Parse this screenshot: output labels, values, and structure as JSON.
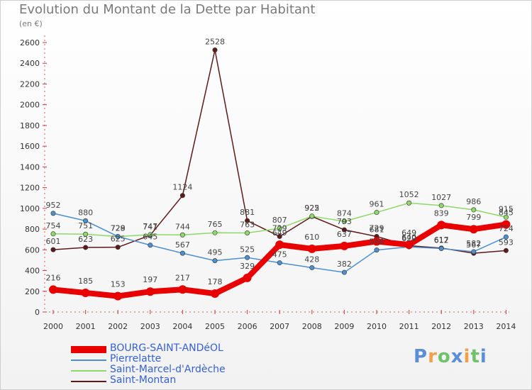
{
  "header": {
    "title": "Evolution du Montant de la Dette par Habitant",
    "subtitle": "(en €)"
  },
  "logo": {
    "text": "Proxiti",
    "colors": [
      "#5a8fd8",
      "#f2a14a",
      "#6fc26a"
    ]
  },
  "chart_data": {
    "type": "line",
    "title": "Evolution du Montant de la Dette par Habitant",
    "ylabel": "(en €)",
    "xlabel": "",
    "ylim": [
      0,
      2600
    ],
    "yticks": [
      0,
      200,
      400,
      600,
      800,
      1000,
      1200,
      1400,
      1600,
      1800,
      2000,
      2200,
      2400,
      2600
    ],
    "grid": false,
    "legend_position": "bottom-left",
    "x": [
      "2000",
      "2001",
      "2002",
      "2003",
      "2004",
      "2005",
      "2006",
      "2007",
      "2008",
      "2009",
      "2010",
      "2011",
      "2012",
      "2013",
      "2014"
    ],
    "series": [
      {
        "name": "Saint-Montan",
        "color": "#5e1a1a",
        "values": [
          601,
          623,
          625,
          741,
          1124,
          2528,
          881,
          729,
          922,
          793,
          729,
          640,
          617,
          567,
          593
        ],
        "labels": [
          "601",
          "623",
          "625",
          "741",
          "1124",
          "2528",
          "881",
          "729",
          "922",
          "793",
          "729",
          "640",
          "617",
          "567",
          "593"
        ]
      },
      {
        "name": "Saint-Marcel-d'Ardèche",
        "color": "#8fd86a",
        "values": [
          754,
          751,
          728,
          747,
          744,
          765,
          763,
          807,
          925,
          874,
          961,
          1052,
          1027,
          986,
          915
        ],
        "labels": [
          "754",
          "751",
          "728",
          "747",
          "744",
          "765",
          "763",
          "807",
          "925",
          "874",
          "961",
          "1052",
          "1027",
          "986",
          "915"
        ]
      },
      {
        "name": "Pierrelatte",
        "color": "#4d8fcf",
        "values": [
          952,
          880,
          729,
          645,
          567,
          495,
          525,
          475,
          428,
          382,
          598,
          629,
          612,
          582,
          724
        ],
        "labels": [
          "952",
          "880",
          "729",
          "645",
          "567",
          "495",
          "525",
          "475",
          "428",
          "382",
          "598",
          "629",
          "612",
          "582",
          "724"
        ]
      },
      {
        "name": "BOURG-SAINT-ANDéOL",
        "color": "#e80000",
        "values": [
          216,
          185,
          153,
          197,
          217,
          178,
          329,
          649,
          610,
          637,
          681,
          649,
          839,
          799,
          845
        ],
        "labels": [
          "216",
          "185",
          "153",
          "197",
          "217",
          "178",
          "329",
          "649",
          "610",
          "637",
          "681",
          "649",
          "839",
          "799",
          "845"
        ]
      }
    ],
    "legend_order": [
      "BOURG-SAINT-ANDéOL",
      "Pierrelatte",
      "Saint-Marcel-d'Ardèche",
      "Saint-Montan"
    ]
  }
}
